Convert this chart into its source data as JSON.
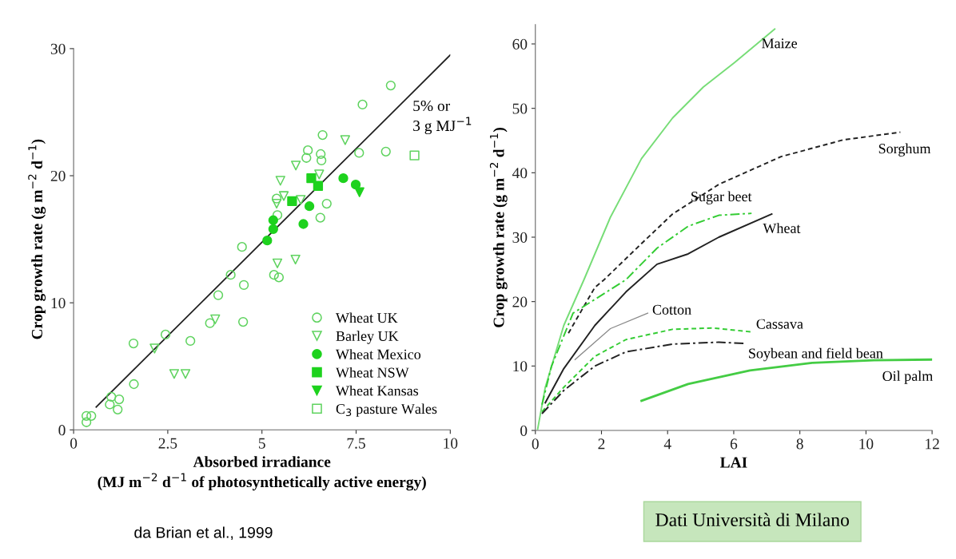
{
  "chart_data": [
    {
      "type": "scatter",
      "xlabel": "Absorbed irradiance\n(MJ m$^{−2}$ d$^{−1}$ of photosynthetically active energy)",
      "ylabel": "Crop growth rate (g m$^{−2}$ d$^{−1}$)",
      "xlim": [
        0,
        10
      ],
      "ylim": [
        0,
        30
      ],
      "xticks": [
        0,
        2.5,
        5,
        7.5,
        10
      ],
      "yticks": [
        0,
        10,
        20,
        30
      ],
      "grid": false,
      "legend": "bottom right",
      "series": [
        {
          "name": "Wheat UK",
          "color": "#5fd35f",
          "marker": "circle",
          "x": [
            0.34,
            0.47,
            0.34,
            1.0,
            1.21,
            0.96,
            1.17,
            1.59,
            1.6,
            2.44,
            3.1,
            3.62,
            3.84,
            4.17,
            4.47,
            4.52,
            4.5,
            5.32,
            5.45,
            5.41,
            5.39,
            6.72,
            6.55,
            6.22,
            6.18,
            6.56,
            6.58,
            6.61,
            7.58,
            7.67,
            8.42,
            8.29
          ],
          "values": [
            1.1,
            1.1,
            0.6,
            2.6,
            2.4,
            2.0,
            1.6,
            6.8,
            3.6,
            7.5,
            7.0,
            8.4,
            10.6,
            12.2,
            14.4,
            11.4,
            8.5,
            12.2,
            12.0,
            16.9,
            18.2,
            17.8,
            16.7,
            22.0,
            21.4,
            21.7,
            21.2,
            23.2,
            21.8,
            25.6,
            27.1,
            21.9
          ]
        },
        {
          "name": "Barley UK",
          "color": "#5fd35f",
          "marker": "triangle",
          "x": [
            2.15,
            2.67,
            2.97,
            3.76,
            5.41,
            5.49,
            5.58,
            5.39,
            5.89,
            6.03,
            6.52,
            5.9,
            7.21
          ],
          "values": [
            6.4,
            4.4,
            4.4,
            8.7,
            13.1,
            19.6,
            18.4,
            17.8,
            13.4,
            18.1,
            20.1,
            20.8,
            22.8
          ]
        },
        {
          "name": "Wheat Mexico",
          "color": "#1ed21e",
          "marker": "circle",
          "x": [
            5.3,
            5.3,
            5.14,
            6.26,
            6.1,
            7.16,
            7.49
          ],
          "values": [
            16.5,
            15.8,
            14.9,
            17.6,
            16.2,
            19.8,
            19.3
          ]
        },
        {
          "name": "Wheat NSW",
          "color": "#1ed21e",
          "marker": "square",
          "x": [
            6.31,
            6.49,
            5.8
          ],
          "values": [
            19.8,
            19.2,
            18.0
          ]
        },
        {
          "name": "Wheat Kansas",
          "color": "#1ed21e",
          "marker": "triangle",
          "x": [
            7.59
          ],
          "values": [
            18.7
          ]
        },
        {
          "name": "C$_{3}$ pasture Wales",
          "color": "#5fd35f",
          "marker": "square",
          "x": [
            9.05
          ],
          "values": [
            21.6
          ]
        },
        {
          "type": "line",
          "color": "#222222",
          "x": [
            0.6,
            10
          ],
          "values": [
            1.8,
            29.5
          ]
        }
      ],
      "annotations": [
        "5% or\n3 g MJ$^{−1}$",
        "da Brian et al., 1999"
      ]
    },
    {
      "type": "line",
      "xlabel": "LAI",
      "ylabel": "Crop growth rate (g m$^{−2}$ d$^{−1}$)",
      "xlim": [
        0,
        12
      ],
      "ylim": [
        0,
        63
      ],
      "xticks": [
        0,
        2,
        4,
        6,
        8,
        10,
        12
      ],
      "yticks": [
        0,
        10,
        20,
        30,
        40,
        50,
        60
      ],
      "grid": false,
      "legend": false,
      "series": [
        {
          "name": "Maize",
          "color": "#77dd77",
          "line_style": "solid",
          "x": [
            0.07,
            0.3,
            0.86,
            1.47,
            2.27,
            3.21,
            4.15,
            5.08,
            6.02,
            7.24
          ],
          "values": [
            0.2,
            6.7,
            16.3,
            23.4,
            33.1,
            42.2,
            48.5,
            53.3,
            57.1,
            62.3
          ]
        },
        {
          "name": "Sorghum",
          "color": "#222222",
          "line_style": "dashed",
          "x": [
            1.0,
            1.8,
            2.08,
            3.21,
            4.15,
            5.55,
            7.43,
            9.31,
            11.04
          ],
          "values": [
            15.1,
            22.2,
            23.4,
            29.0,
            33.6,
            38.2,
            42.5,
            45.1,
            46.3
          ]
        },
        {
          "name": "Sugar beet",
          "color": "#33cc33",
          "line_style": "dashdot",
          "x": [
            0.2,
            0.49,
            1.14,
            2.74,
            3.68,
            4.62,
            5.55,
            6.54
          ],
          "values": [
            4.0,
            10.0,
            18.2,
            23.4,
            28.3,
            31.7,
            33.4,
            33.7
          ]
        },
        {
          "name": "Wheat",
          "color": "#222222",
          "line_style": "solid",
          "x": [
            0.3,
            0.86,
            1.8,
            2.74,
            3.68,
            4.62,
            5.55,
            7.15
          ],
          "values": [
            4.3,
            9.6,
            16.3,
            21.5,
            25.8,
            27.4,
            30.0,
            33.6
          ]
        },
        {
          "name": "Cotton",
          "color": "#888888",
          "line_style": "solid",
          "x": [
            1.2,
            2.27,
            3.4
          ],
          "values": [
            11.0,
            15.8,
            18.2
          ]
        },
        {
          "name": "Cassava",
          "color": "#33cc33",
          "line_style": "dashed",
          "x": [
            0.2,
            0.86,
            1.8,
            2.74,
            4.15,
            5.37,
            6.54
          ],
          "values": [
            2.9,
            6.7,
            11.5,
            14.1,
            15.7,
            15.9,
            15.3
          ]
        },
        {
          "name": "Soybean and field bean",
          "color": "#222222",
          "line_style": "dashdot",
          "x": [
            0.2,
            0.86,
            1.8,
            2.74,
            4.15,
            5.55,
            6.3
          ],
          "values": [
            2.6,
            6.2,
            10.0,
            12.2,
            13.4,
            13.7,
            13.5
          ]
        },
        {
          "name": "Oil palm",
          "color": "#44cc44",
          "line_style": "solid",
          "x": [
            3.21,
            4.62,
            6.49,
            8.37,
            10.24,
            12.0
          ],
          "values": [
            4.6,
            7.2,
            9.3,
            10.5,
            10.9,
            11.0
          ]
        }
      ],
      "annotations": [
        "Dati Università di Milano"
      ]
    }
  ]
}
